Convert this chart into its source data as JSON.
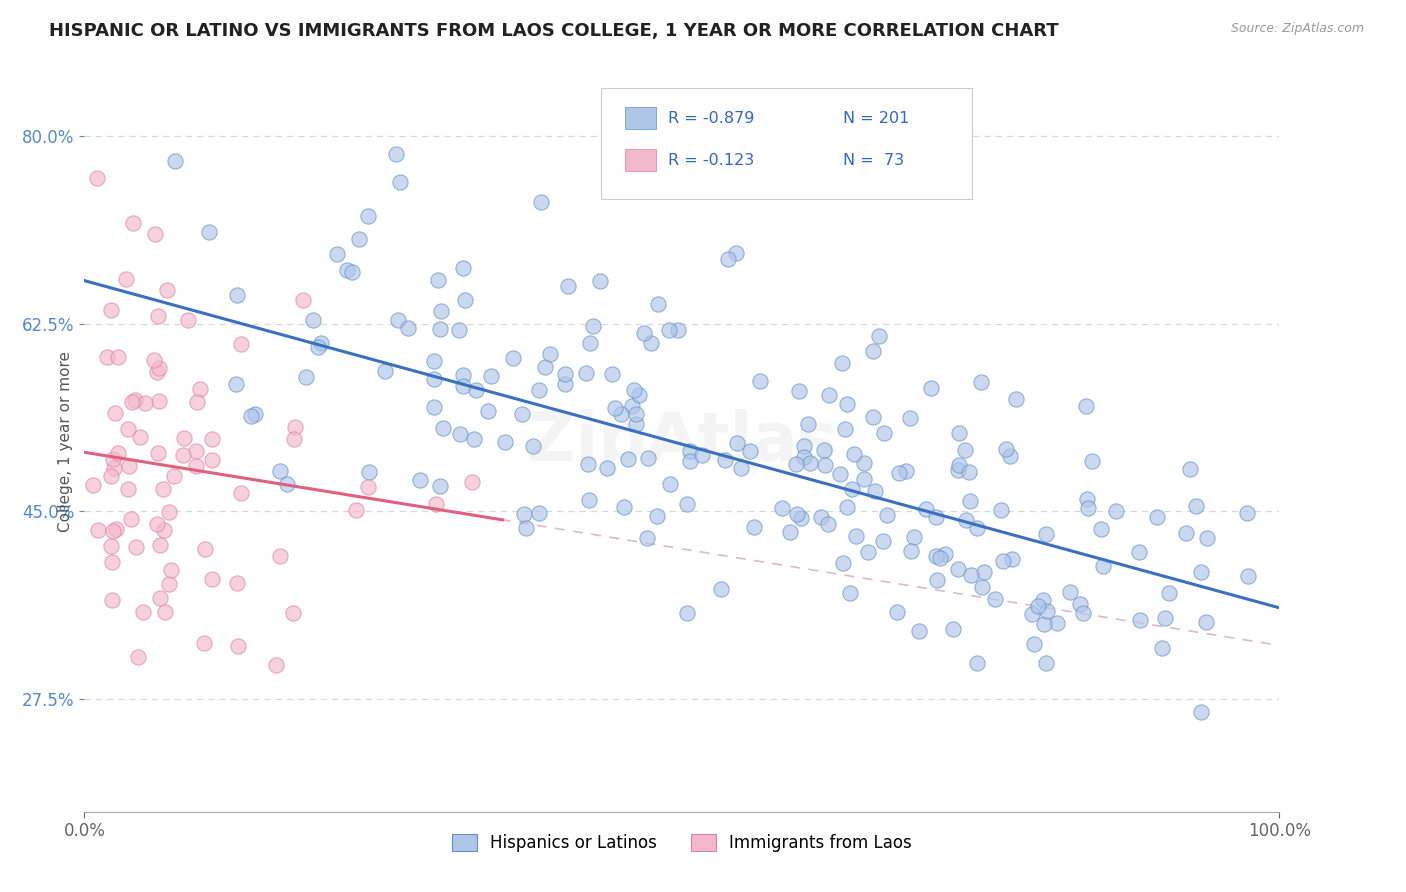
{
  "title": "HISPANIC OR LATINO VS IMMIGRANTS FROM LAOS COLLEGE, 1 YEAR OR MORE CORRELATION CHART",
  "source": "Source: ZipAtlas.com",
  "ylabel": "College, 1 year or more",
  "xlim": [
    0.0,
    1.0
  ],
  "ylim": [
    0.17,
    0.86
  ],
  "yticks": [
    0.275,
    0.45,
    0.625,
    0.8
  ],
  "ytick_labels": [
    "27.5%",
    "45.0%",
    "62.5%",
    "80.0%"
  ],
  "xticks": [
    0.0,
    1.0
  ],
  "xtick_labels": [
    "0.0%",
    "100.0%"
  ],
  "legend_r1": "-0.879",
  "legend_n1": "201",
  "legend_r2": "-0.123",
  "legend_n2": " 73",
  "color_blue": "#AEC6E8",
  "color_pink": "#F4B8CC",
  "line_blue": "#3A70C0",
  "line_pink": "#E06080",
  "line_pink_dash": "#DDB8C8",
  "scatter_blue_edge": "#6090CC",
  "scatter_pink_edge": "#E080A0",
  "r1": -0.879,
  "n1": 201,
  "r2": -0.123,
  "n2": 73,
  "watermark": "ZipAtlas",
  "legend_label1": "Hispanics or Latinos",
  "legend_label2": "Immigrants from Laos",
  "background_color": "#FFFFFF",
  "grid_color": "#D8D8D8",
  "intercept_blue": 0.665,
  "slope_blue": -0.305,
  "intercept_pink": 0.505,
  "slope_pink": -0.18
}
